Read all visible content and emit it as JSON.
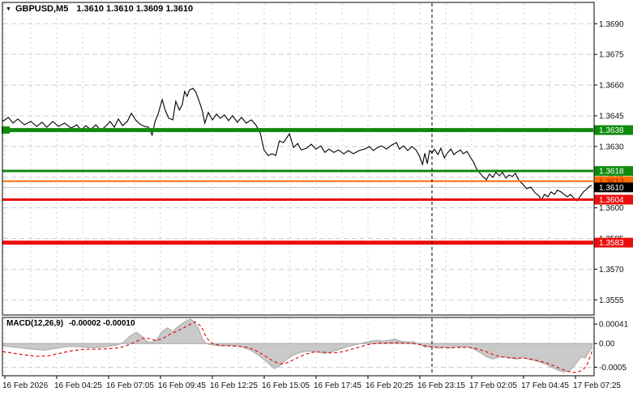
{
  "window": {
    "symbol_period": "GBPUSD,M5",
    "ohlc_text": "1.3610 1.3610 1.3609 1.3610",
    "dropdown_arrow": "▼"
  },
  "colors": {
    "background": "#ffffff",
    "border": "#000000",
    "grid": "#cfcfcf",
    "price_line": "#000000",
    "green_level": "#0e8a0e",
    "orange_level": "#ff6d00",
    "red_level": "#ec0e0e",
    "silver_current": "#c4c4c4",
    "black_badge": "#000000",
    "macd_fill": "#c9c9c9",
    "macd_edge": "#a9a9a9",
    "signal_red": "#e01414",
    "separator": "#000000"
  },
  "chart_data": {
    "type": "line",
    "title": "GBPUSD,M5",
    "symbol": "GBPUSD",
    "timeframe": "M5",
    "ohlc": {
      "open": "1.3610",
      "high": "1.3610",
      "low": "1.3609",
      "close": "1.3610"
    },
    "x_axis": {
      "labels": [
        "16 Feb 2026",
        "16 Feb 04:25",
        "16 Feb 07:05",
        "16 Feb 09:45",
        "16 Feb 12:25",
        "16 Feb 15:05",
        "16 Feb 17:45",
        "16 Feb 20:25",
        "16 Feb 23:15",
        "17 Feb 02:05",
        "17 Feb 04:45",
        "17 Feb 07:25"
      ]
    },
    "y_axis": {
      "tick_labels": [
        "1.3690",
        "1.3675",
        "1.3660",
        "1.3645",
        "1.3630",
        "1.3615",
        "1.3600",
        "1.3585",
        "1.3570",
        "1.3555"
      ],
      "ticks": [
        1.369,
        1.3675,
        1.366,
        1.3645,
        1.363,
        1.3615,
        1.36,
        1.3585,
        1.357,
        1.3555
      ],
      "max": 1.37,
      "min": 1.3548,
      "grid": true
    },
    "day_separator_frac": 0.726,
    "current_price": 1.361,
    "levels": [
      {
        "price": 1.3638,
        "color": "#0e8a0e",
        "width": 5,
        "kind": "resistance"
      },
      {
        "price": 1.3618,
        "color": "#0e8a0e",
        "width": 3,
        "kind": "resistance"
      },
      {
        "price": 1.3613,
        "color": "#ff6d00",
        "width": 2,
        "kind": "pivot"
      },
      {
        "price": 1.3604,
        "color": "#ec0e0e",
        "width": 3,
        "kind": "support"
      },
      {
        "price": 1.3583,
        "color": "#ec0e0e",
        "width": 5,
        "kind": "support"
      }
    ],
    "badges": [
      {
        "label": "1.3638",
        "price": 1.3638,
        "bg": "#0e8a0e",
        "fg": "#ffffff"
      },
      {
        "label": "1.3618",
        "price": 1.3618,
        "bg": "#0e8a0e",
        "fg": "#ffffff"
      },
      {
        "label": "1.3613",
        "price": 1.3613,
        "bg": "#ff6d00",
        "fg": "#9b1c00"
      },
      {
        "label": "1.3610",
        "price": 1.361,
        "bg": "#000000",
        "fg": "#ffffff"
      },
      {
        "label": "1.3604",
        "price": 1.3604,
        "bg": "#ec0e0e",
        "fg": "#ffffff"
      },
      {
        "label": "1.3583",
        "price": 1.3583,
        "bg": "#ec0e0e",
        "fg": "#ffffff"
      }
    ],
    "price_series": [
      [
        0.0,
        1.36422
      ],
      [
        0.01,
        1.36442
      ],
      [
        0.018,
        1.36414
      ],
      [
        0.026,
        1.36434
      ],
      [
        0.037,
        1.36406
      ],
      [
        0.048,
        1.36422
      ],
      [
        0.058,
        1.36398
      ],
      [
        0.067,
        1.36418
      ],
      [
        0.075,
        1.36394
      ],
      [
        0.085,
        1.36422
      ],
      [
        0.095,
        1.36398
      ],
      [
        0.105,
        1.36414
      ],
      [
        0.116,
        1.3639
      ],
      [
        0.126,
        1.36406
      ],
      [
        0.133,
        1.36378
      ],
      [
        0.141,
        1.36402
      ],
      [
        0.149,
        1.36382
      ],
      [
        0.158,
        1.36406
      ],
      [
        0.166,
        1.36378
      ],
      [
        0.174,
        1.36398
      ],
      [
        0.182,
        1.36422
      ],
      [
        0.189,
        1.36394
      ],
      [
        0.196,
        1.36434
      ],
      [
        0.203,
        1.36402
      ],
      [
        0.211,
        1.36422
      ],
      [
        0.218,
        1.36462
      ],
      [
        0.225,
        1.3643
      ],
      [
        0.232,
        1.3641
      ],
      [
        0.24,
        1.36398
      ],
      [
        0.247,
        1.36394
      ],
      [
        0.253,
        1.36355
      ],
      [
        0.258,
        1.36422
      ],
      [
        0.263,
        1.36458
      ],
      [
        0.27,
        1.36529
      ],
      [
        0.275,
        1.36478
      ],
      [
        0.281,
        1.36438
      ],
      [
        0.288,
        1.3643
      ],
      [
        0.293,
        1.36521
      ],
      [
        0.299,
        1.36478
      ],
      [
        0.304,
        1.36505
      ],
      [
        0.308,
        1.36569
      ],
      [
        0.312,
        1.36545
      ],
      [
        0.316,
        1.36576
      ],
      [
        0.322,
        1.36584
      ],
      [
        0.327,
        1.36565
      ],
      [
        0.333,
        1.36517
      ],
      [
        0.338,
        1.36473
      ],
      [
        0.342,
        1.36414
      ],
      [
        0.348,
        1.36466
      ],
      [
        0.355,
        1.3643
      ],
      [
        0.362,
        1.36458
      ],
      [
        0.368,
        1.36438
      ],
      [
        0.375,
        1.36454
      ],
      [
        0.382,
        1.36426
      ],
      [
        0.389,
        1.3645
      ],
      [
        0.397,
        1.36418
      ],
      [
        0.404,
        1.36442
      ],
      [
        0.412,
        1.36414
      ],
      [
        0.421,
        1.3643
      ],
      [
        0.429,
        1.36402
      ],
      [
        0.436,
        1.36363
      ],
      [
        0.442,
        1.36283
      ],
      [
        0.449,
        1.36256
      ],
      [
        0.456,
        1.36264
      ],
      [
        0.462,
        1.36256
      ],
      [
        0.468,
        1.36327
      ],
      [
        0.475,
        1.36319
      ],
      [
        0.485,
        1.36362
      ],
      [
        0.492,
        1.36295
      ],
      [
        0.499,
        1.36315
      ],
      [
        0.505,
        1.36283
      ],
      [
        0.514,
        1.36291
      ],
      [
        0.522,
        1.36311
      ],
      [
        0.53,
        1.36287
      ],
      [
        0.538,
        1.36303
      ],
      [
        0.545,
        1.36271
      ],
      [
        0.552,
        1.36287
      ],
      [
        0.56,
        1.36271
      ],
      [
        0.568,
        1.36283
      ],
      [
        0.577,
        1.36264
      ],
      [
        0.585,
        1.3628
      ],
      [
        0.593,
        1.36264
      ],
      [
        0.603,
        1.3628
      ],
      [
        0.612,
        1.36287
      ],
      [
        0.62,
        1.36299
      ],
      [
        0.627,
        1.3628
      ],
      [
        0.634,
        1.36295
      ],
      [
        0.641,
        1.36303
      ],
      [
        0.649,
        1.36287
      ],
      [
        0.658,
        1.36307
      ],
      [
        0.666,
        1.36319
      ],
      [
        0.671,
        1.36287
      ],
      [
        0.678,
        1.36303
      ],
      [
        0.685,
        1.3628
      ],
      [
        0.692,
        1.36299
      ],
      [
        0.699,
        1.36283
      ],
      [
        0.705,
        1.36252
      ],
      [
        0.71,
        1.36212
      ],
      [
        0.714,
        1.36267
      ],
      [
        0.718,
        1.36216
      ],
      [
        0.722,
        1.3628
      ],
      [
        0.726,
        1.36268
      ],
      [
        0.73,
        1.36287
      ],
      [
        0.736,
        1.3626
      ],
      [
        0.741,
        1.36291
      ],
      [
        0.747,
        1.36244
      ],
      [
        0.752,
        1.36268
      ],
      [
        0.758,
        1.36287
      ],
      [
        0.763,
        1.3626
      ],
      [
        0.768,
        1.36272
      ],
      [
        0.774,
        1.36283
      ],
      [
        0.779,
        1.36264
      ],
      [
        0.785,
        1.36276
      ],
      [
        0.79,
        1.36252
      ],
      [
        0.796,
        1.36224
      ],
      [
        0.801,
        1.36192
      ],
      [
        0.807,
        1.36169
      ],
      [
        0.812,
        1.36153
      ],
      [
        0.818,
        1.36137
      ],
      [
        0.823,
        1.36165
      ],
      [
        0.829,
        1.36149
      ],
      [
        0.834,
        1.36173
      ],
      [
        0.84,
        1.36157
      ],
      [
        0.845,
        1.36173
      ],
      [
        0.851,
        1.36145
      ],
      [
        0.856,
        1.36161
      ],
      [
        0.862,
        1.36153
      ],
      [
        0.867,
        1.36169
      ],
      [
        0.873,
        1.36133
      ],
      [
        0.879,
        1.36117
      ],
      [
        0.886,
        1.36093
      ],
      [
        0.893,
        1.36101
      ],
      [
        0.9,
        1.36074
      ],
      [
        0.907,
        1.36058
      ],
      [
        0.911,
        1.36038
      ],
      [
        0.916,
        1.36066
      ],
      [
        0.922,
        1.36054
      ],
      [
        0.927,
        1.36078
      ],
      [
        0.933,
        1.36066
      ],
      [
        0.938,
        1.36086
      ],
      [
        0.944,
        1.36078
      ],
      [
        0.949,
        1.36066
      ],
      [
        0.955,
        1.36054
      ],
      [
        0.96,
        1.36066
      ],
      [
        0.966,
        1.36046
      ],
      [
        0.971,
        1.36034
      ],
      [
        0.977,
        1.36058
      ],
      [
        0.982,
        1.36078
      ],
      [
        0.988,
        1.36093
      ],
      [
        0.992,
        1.36105
      ],
      [
        0.996,
        1.3611
      ]
    ],
    "macd": {
      "label": "MACD(12,26,9)",
      "values_text": "-0.00002 -0.00010",
      "macd_value": -2e-05,
      "signal_value": -0.0001,
      "axis_labels": [
        "0.00041",
        "0.00",
        "-0.0005"
      ],
      "axis_values": [
        0.00041,
        0.0,
        -0.0005
      ],
      "max": 0.00055,
      "min": -0.00068,
      "macd_series": [
        [
          0.0,
          -5e-05
        ],
        [
          0.023,
          -8e-05
        ],
        [
          0.051,
          -0.00012
        ],
        [
          0.071,
          -0.00014
        ],
        [
          0.092,
          -0.0001
        ],
        [
          0.112,
          -6e-05
        ],
        [
          0.133,
          -7e-05
        ],
        [
          0.153,
          -9e-05
        ],
        [
          0.174,
          -7e-05
        ],
        [
          0.195,
          -3e-05
        ],
        [
          0.204,
          2e-05
        ],
        [
          0.215,
          0.00015
        ],
        [
          0.226,
          0.00024
        ],
        [
          0.236,
          0.00015
        ],
        [
          0.245,
          4e-05
        ],
        [
          0.253,
          2e-05
        ],
        [
          0.262,
          0.0001
        ],
        [
          0.27,
          0.00026
        ],
        [
          0.279,
          0.00033
        ],
        [
          0.288,
          0.00026
        ],
        [
          0.297,
          0.00036
        ],
        [
          0.308,
          0.00046
        ],
        [
          0.318,
          0.00052
        ],
        [
          0.325,
          0.00044
        ],
        [
          0.332,
          0.0003
        ],
        [
          0.338,
          0.0001
        ],
        [
          0.344,
          0.0
        ],
        [
          0.355,
          -3e-05
        ],
        [
          0.368,
          -5e-05
        ],
        [
          0.382,
          -4e-05
        ],
        [
          0.396,
          -5e-05
        ],
        [
          0.407,
          -8e-05
        ],
        [
          0.421,
          -0.00015
        ],
        [
          0.434,
          -0.00026
        ],
        [
          0.448,
          -0.0004
        ],
        [
          0.459,
          -0.00053
        ],
        [
          0.468,
          -0.00048
        ],
        [
          0.478,
          -0.00036
        ],
        [
          0.489,
          -0.00026
        ],
        [
          0.503,
          -0.00019
        ],
        [
          0.516,
          -0.00016
        ],
        [
          0.53,
          -0.00017
        ],
        [
          0.544,
          -0.00021
        ],
        [
          0.558,
          -0.00017
        ],
        [
          0.571,
          -0.00012
        ],
        [
          0.585,
          -6e-05
        ],
        [
          0.599,
          -2e-05
        ],
        [
          0.612,
          2e-05
        ],
        [
          0.623,
          5e-05
        ],
        [
          0.633,
          7e-05
        ],
        [
          0.643,
          5e-05
        ],
        [
          0.653,
          7e-05
        ],
        [
          0.664,
          9e-05
        ],
        [
          0.674,
          5e-05
        ],
        [
          0.685,
          3e-05
        ],
        [
          0.695,
          4e-05
        ],
        [
          0.705,
          -2e-05
        ],
        [
          0.715,
          -8e-05
        ],
        [
          0.726,
          -6e-05
        ],
        [
          0.736,
          -0.0001
        ],
        [
          0.747,
          -7e-05
        ],
        [
          0.756,
          -0.0001
        ],
        [
          0.766,
          -6e-05
        ],
        [
          0.777,
          -8e-05
        ],
        [
          0.788,
          -7e-05
        ],
        [
          0.797,
          -0.00012
        ],
        [
          0.807,
          -0.00019
        ],
        [
          0.818,
          -0.00028
        ],
        [
          0.829,
          -0.00033
        ],
        [
          0.838,
          -0.00029
        ],
        [
          0.848,
          -0.00028
        ],
        [
          0.859,
          -0.00031
        ],
        [
          0.87,
          -0.00033
        ],
        [
          0.879,
          -0.00029
        ],
        [
          0.889,
          -0.00033
        ],
        [
          0.9,
          -0.00036
        ],
        [
          0.911,
          -0.0004
        ],
        [
          0.921,
          -0.00045
        ],
        [
          0.93,
          -0.00051
        ],
        [
          0.938,
          -0.00056
        ],
        [
          0.948,
          -0.0006
        ],
        [
          0.958,
          -0.00058
        ],
        [
          0.966,
          -0.00048
        ],
        [
          0.973,
          -0.00036
        ],
        [
          0.979,
          -0.00028
        ],
        [
          0.985,
          -0.00031
        ],
        [
          0.99,
          -0.0002
        ],
        [
          0.995,
          -0.0001
        ],
        [
          0.997,
          -2e-05
        ]
      ],
      "signal_series": [
        [
          0.0,
          -0.00017
        ],
        [
          0.016,
          -0.0002
        ],
        [
          0.037,
          -0.00024
        ],
        [
          0.058,
          -0.00027
        ],
        [
          0.078,
          -0.00026
        ],
        [
          0.099,
          -0.0002
        ],
        [
          0.119,
          -0.00015
        ],
        [
          0.14,
          -0.00012
        ],
        [
          0.16,
          -0.00012
        ],
        [
          0.181,
          -0.00011
        ],
        [
          0.201,
          -8e-05
        ],
        [
          0.215,
          -2e-05
        ],
        [
          0.229,
          6e-05
        ],
        [
          0.24,
          0.00012
        ],
        [
          0.249,
          0.0001
        ],
        [
          0.259,
          6e-05
        ],
        [
          0.27,
          0.0001
        ],
        [
          0.284,
          0.0002
        ],
        [
          0.297,
          0.00027
        ],
        [
          0.311,
          0.00036
        ],
        [
          0.325,
          0.00046
        ],
        [
          0.336,
          0.00036
        ],
        [
          0.345,
          0.00012
        ],
        [
          0.355,
          0.0
        ],
        [
          0.368,
          -4e-05
        ],
        [
          0.386,
          -5e-05
        ],
        [
          0.4,
          -6e-05
        ],
        [
          0.414,
          -8e-05
        ],
        [
          0.427,
          -0.00014
        ],
        [
          0.441,
          -0.00024
        ],
        [
          0.455,
          -0.00035
        ],
        [
          0.466,
          -0.00042
        ],
        [
          0.475,
          -0.00043
        ],
        [
          0.486,
          -0.00038
        ],
        [
          0.5,
          -0.00029
        ],
        [
          0.514,
          -0.00022
        ],
        [
          0.527,
          -0.00018
        ],
        [
          0.541,
          -0.00018
        ],
        [
          0.555,
          -0.0002
        ],
        [
          0.568,
          -0.00019
        ],
        [
          0.582,
          -0.00015
        ],
        [
          0.596,
          -0.0001
        ],
        [
          0.61,
          -5e-05
        ],
        [
          0.623,
          -1e-05
        ],
        [
          0.637,
          1e-05
        ],
        [
          0.651,
          1e-05
        ],
        [
          0.664,
          2e-05
        ],
        [
          0.678,
          1e-05
        ],
        [
          0.692,
          0.0
        ],
        [
          0.705,
          -2e-05
        ],
        [
          0.719,
          -6e-05
        ],
        [
          0.733,
          -8e-05
        ],
        [
          0.747,
          -9e-05
        ],
        [
          0.76,
          -9e-05
        ],
        [
          0.774,
          -8e-05
        ],
        [
          0.788,
          -8e-05
        ],
        [
          0.801,
          -0.00011
        ],
        [
          0.815,
          -0.00016
        ],
        [
          0.829,
          -0.00023
        ],
        [
          0.842,
          -0.00028
        ],
        [
          0.856,
          -0.0003
        ],
        [
          0.87,
          -0.00031
        ],
        [
          0.884,
          -0.00031
        ],
        [
          0.897,
          -0.00034
        ],
        [
          0.908,
          -0.00037
        ],
        [
          0.919,
          -0.00041
        ],
        [
          0.93,
          -0.00046
        ],
        [
          0.941,
          -0.00052
        ],
        [
          0.952,
          -0.00057
        ],
        [
          0.962,
          -0.00061
        ],
        [
          0.97,
          -0.00061
        ],
        [
          0.977,
          -0.00058
        ],
        [
          0.984,
          -0.00052
        ],
        [
          0.989,
          -0.00042
        ],
        [
          0.993,
          -0.00028
        ],
        [
          0.996,
          -0.00018
        ],
        [
          0.997,
          -0.0001
        ]
      ]
    }
  }
}
